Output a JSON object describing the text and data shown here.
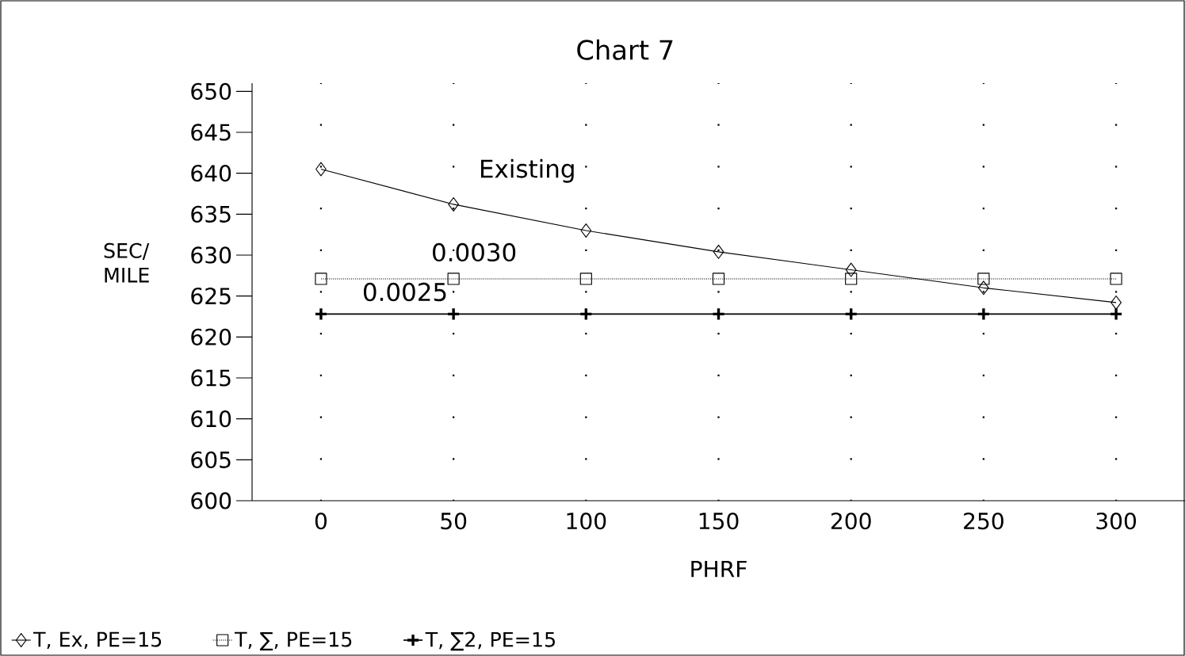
{
  "chart_data": {
    "type": "line",
    "title": "Chart  7",
    "xlabel": "PHRF",
    "ylabel": "SEC/ MILE",
    "xlim": [
      -26,
      326
    ],
    "ylim": [
      600,
      651
    ],
    "xticks": [
      0,
      50,
      100,
      150,
      200,
      250,
      300
    ],
    "yticks": [
      600,
      605,
      610,
      615,
      620,
      625,
      630,
      635,
      640,
      645,
      650
    ],
    "grid": true,
    "legend": "bottom left",
    "series": [
      {
        "name": "T, Ex, PE=15",
        "color": "#000000",
        "marker": "diamond",
        "line_style": "solid",
        "x": [
          0,
          50,
          100,
          150,
          200,
          250,
          300
        ],
        "values": [
          640.5,
          636.2,
          633,
          630.4,
          628.2,
          626,
          624.2
        ]
      },
      {
        "name": "T, ∑, PE=15",
        "color": "#000000",
        "marker": "square",
        "line_style": "dotted",
        "x": [
          0,
          50,
          100,
          150,
          200,
          250,
          300
        ],
        "values": [
          627.1,
          627.1,
          627.1,
          627.1,
          627.1,
          627.1,
          627.1
        ]
      },
      {
        "name": "T, ∑2, PE=15",
        "color": "#000000",
        "marker": "cross",
        "line_style": "solid",
        "x": [
          0,
          50,
          100,
          150,
          200,
          250,
          300
        ],
        "values": [
          622.8,
          622.8,
          622.8,
          622.8,
          622.8,
          622.8,
          622.8
        ]
      }
    ],
    "annotations": [
      "Existing",
      "0.0030",
      "0.0025"
    ]
  }
}
